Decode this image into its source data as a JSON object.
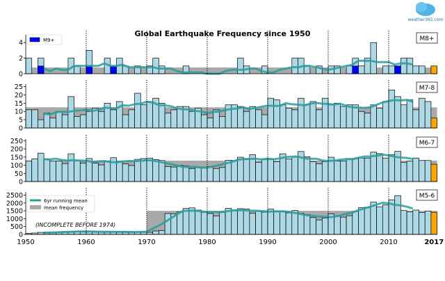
{
  "logo": {
    "text": "weather365.com"
  },
  "chart_data": {
    "type": "bar",
    "title": "Global Earthquake Frequency since 1950",
    "x_start": 1950,
    "x_end": 2017,
    "x_ticks": [
      "1950",
      "1960",
      "1970",
      "1980",
      "1990",
      "2000",
      "2010",
      "2017"
    ],
    "colors": {
      "bar": "#add8e6",
      "highlight_current_year": "#ffa500",
      "m9": "#0000ff",
      "mean_band": "#a9a9a9",
      "running_mean": "#2a9d9d"
    },
    "legend_running_mean": "6yr running mean",
    "legend_mean_frequency": "mean frequency",
    "legend_m9": "M9+",
    "annotation": "(INCOMPLETE BEFORE 1974)",
    "panels": [
      {
        "label": "M8+",
        "ylim": [
          0,
          5
        ],
        "yticks": [
          0,
          2,
          4
        ],
        "mean_frequency": 0.8,
        "mean_from": 1950,
        "values": [
          2,
          0,
          2,
          0,
          0,
          0,
          0,
          2,
          1,
          0,
          3,
          0,
          0,
          2,
          1,
          2,
          1,
          0,
          1,
          0,
          1,
          2,
          1,
          0,
          0,
          0,
          1,
          0,
          0,
          0,
          0,
          0,
          0,
          0,
          0,
          2,
          1,
          0,
          0,
          1,
          0,
          0,
          0,
          0,
          2,
          2,
          1,
          0,
          1,
          0,
          1,
          1,
          0,
          1,
          2,
          1,
          2,
          4,
          0,
          1,
          1,
          1,
          2,
          2,
          1,
          1,
          0,
          1
        ],
        "m9_plus": {
          "1952": 1,
          "1960": 1,
          "1964": 1,
          "2004": 1,
          "2011": 1
        }
      },
      {
        "label": "M7-8",
        "ylim": [
          0,
          26.5
        ],
        "yticks": [
          0,
          5,
          10,
          15,
          20,
          25
        ],
        "mean_frequency": 12.5,
        "mean_from": 1950,
        "values": [
          11,
          11,
          5,
          9,
          6,
          10,
          8,
          19,
          7,
          8,
          10,
          12,
          10,
          15,
          11,
          16,
          8,
          11,
          21,
          14,
          16,
          18,
          15,
          9,
          11,
          13,
          13,
          10,
          12,
          8,
          6,
          11,
          7,
          14,
          14,
          13,
          10,
          13,
          11,
          8,
          18,
          17,
          14,
          12,
          11,
          18,
          14,
          16,
          11,
          18,
          14,
          15,
          13,
          14,
          14,
          10,
          9,
          14,
          12,
          16,
          23,
          19,
          14,
          17,
          11,
          18,
          16,
          6
        ]
      },
      {
        "label": "M6-7",
        "ylim": [
          0,
          260
        ],
        "yticks": [
          0,
          50,
          100,
          150,
          200,
          250
        ],
        "mean_frequency": 128,
        "mean_from": 1950,
        "values": [
          125,
          139,
          174,
          136,
          126,
          126,
          110,
          170,
          126,
          113,
          141,
          113,
          102,
          126,
          146,
          124,
          108,
          98,
          136,
          141,
          144,
          135,
          129,
          92,
          89,
          99,
          96,
          80,
          85,
          85,
          92,
          80,
          86,
          130,
          129,
          149,
          136,
          165,
          118,
          135,
          135,
          122,
          170,
          139,
          149,
          184,
          152,
          122,
          109,
          122,
          149,
          125,
          126,
          141,
          141,
          144,
          144,
          180,
          171,
          144,
          165,
          185,
          118,
          125,
          144,
          129,
          129,
          106
        ]
      },
      {
        "label": "M5-6",
        "ylim": [
          0,
          2700
        ],
        "yticks": [
          0,
          500,
          1000,
          1500,
          2000,
          2500
        ],
        "mean_frequency": 1500,
        "mean_from": 1970,
        "values": [
          70,
          90,
          130,
          110,
          120,
          130,
          150,
          170,
          200,
          200,
          190,
          170,
          150,
          170,
          160,
          170,
          160,
          150,
          140,
          150,
          130,
          220,
          240,
          1330,
          1320,
          1430,
          1650,
          1690,
          1550,
          1400,
          1330,
          1180,
          1400,
          1660,
          1560,
          1640,
          1610,
          1340,
          1460,
          1410,
          1610,
          1460,
          1460,
          1370,
          1520,
          1340,
          1260,
          1070,
          920,
          1040,
          1310,
          1160,
          1100,
          1190,
          1460,
          1700,
          1730,
          2050,
          1760,
          1890,
          2200,
          2470,
          1520,
          1440,
          1550,
          1400,
          1490,
          1410
        ]
      }
    ]
  }
}
